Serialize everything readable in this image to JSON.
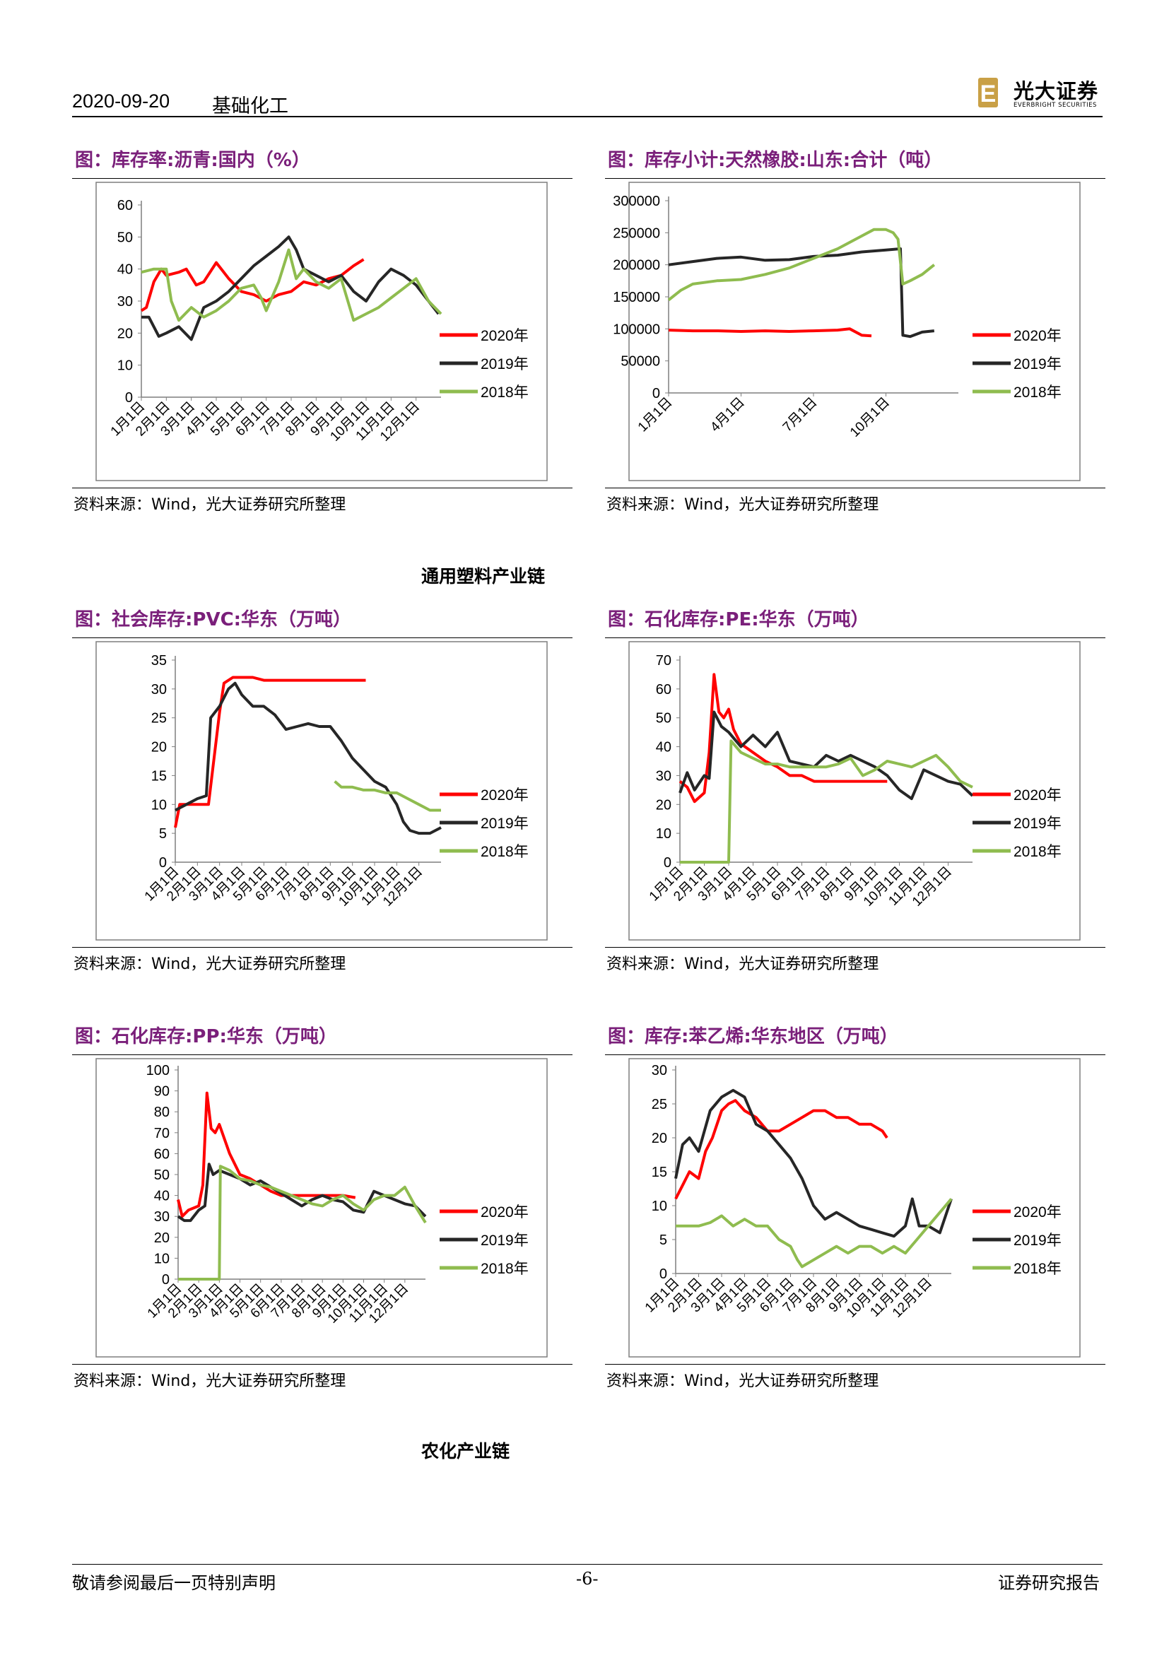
{
  "header": {
    "date": "2020-09-20",
    "sector": "基础化工",
    "logo_cn": "光大证券",
    "logo_en": "EVERBRIGHT SECURITIES",
    "logo_mark": "E"
  },
  "sections": {
    "plastics": "通用塑料产业链",
    "agro": "农化产业链"
  },
  "footer": {
    "left": "敬请参阅最后一页特别声明",
    "page": "-6-",
    "right": "证券研究报告"
  },
  "colors": {
    "2020": "#ff0000",
    "2019": "#262626",
    "2018": "#8fbc4f",
    "title": "#7a1f7a"
  },
  "charts": [
    {
      "id": "asphalt",
      "title": "图：库存率:沥青:国内（%）",
      "source": "资料来源：Wind，光大证券研究所整理"
    },
    {
      "id": "rubber",
      "title": "图：库存小计:天然橡胶:山东:合计（吨）",
      "source": "资料来源：Wind，光大证券研究所整理"
    },
    {
      "id": "pvc",
      "title": "图：社会库存:PVC:华东（万吨）",
      "source": "资料来源：Wind，光大证券研究所整理"
    },
    {
      "id": "pe",
      "title": "图：石化库存:PE:华东（万吨）",
      "source": "资料来源：Wind，光大证券研究所整理"
    },
    {
      "id": "pp",
      "title": "图：石化库存:PP:华东（万吨）",
      "source": "资料来源：Wind，光大证券研究所整理"
    },
    {
      "id": "styrene",
      "title": "图：库存:苯乙烯:华东地区（万吨）",
      "source": "资料来源：Wind，光大证券研究所整理"
    }
  ],
  "chart_data": [
    {
      "id": "asphalt",
      "type": "line",
      "ylim": [
        0,
        60
      ],
      "yticks": [
        0,
        10,
        20,
        30,
        40,
        50,
        60
      ],
      "categories": [
        "1月1日",
        "2月1日",
        "3月1日",
        "4月1日",
        "5月1日",
        "6月1日",
        "7月1日",
        "8月1日",
        "9月1日",
        "10月1日",
        "11月1日",
        "12月1日"
      ],
      "legend": [
        "2020年",
        "2019年",
        "2018年"
      ],
      "legend_position": "right",
      "grid": false,
      "series": [
        {
          "name": "2020年",
          "x": [
            0,
            0.2,
            0.5,
            0.8,
            1.0,
            1.5,
            1.8,
            2.2,
            2.5,
            3.0,
            3.5,
            4.0,
            4.5,
            5.0,
            5.5,
            6.0,
            6.5,
            7.0,
            7.5,
            8.0,
            8.5,
            8.9
          ],
          "values": [
            27,
            28,
            36,
            40,
            38,
            39,
            40,
            35,
            36,
            42,
            37,
            33,
            32,
            30,
            32,
            33,
            36,
            35,
            37,
            38,
            41,
            43
          ]
        },
        {
          "name": "2019年",
          "x": [
            0,
            0.3,
            0.7,
            1.0,
            1.5,
            2.0,
            2.5,
            3.0,
            3.5,
            4.0,
            4.5,
            5.0,
            5.5,
            5.9,
            6.2,
            6.5,
            7.0,
            7.5,
            8.0,
            8.5,
            9.0,
            9.5,
            10.0,
            10.5,
            11.0,
            11.5,
            11.9
          ],
          "values": [
            25,
            25,
            19,
            20,
            22,
            18,
            28,
            30,
            33,
            37,
            41,
            44,
            47,
            50,
            46,
            40,
            38,
            36,
            38,
            33,
            30,
            36,
            40,
            38,
            35,
            30,
            26
          ]
        },
        {
          "name": "2018年",
          "x": [
            0,
            0.5,
            1.0,
            1.2,
            1.5,
            2.0,
            2.5,
            3.0,
            3.5,
            4.0,
            4.5,
            4.8,
            5.0,
            5.5,
            5.9,
            6.2,
            6.5,
            7.0,
            7.5,
            8.0,
            8.5,
            9.0,
            9.5,
            10.0,
            10.5,
            11.0,
            11.5,
            12.0
          ],
          "values": [
            39,
            40,
            40,
            30,
            24,
            28,
            25,
            27,
            30,
            34,
            35,
            31,
            27,
            36,
            46,
            37,
            40,
            36,
            34,
            37,
            24,
            26,
            28,
            31,
            34,
            37,
            30,
            26
          ]
        }
      ]
    },
    {
      "id": "rubber",
      "type": "line",
      "ylim": [
        0,
        300000
      ],
      "yticks": [
        0,
        50000,
        100000,
        150000,
        200000,
        250000,
        300000
      ],
      "categories": [
        "1月1日",
        "4月1日",
        "7月1日",
        "10月1日"
      ],
      "legend": [
        "2020年",
        "2019年",
        "2018年"
      ],
      "legend_position": "right",
      "grid": false,
      "series": [
        {
          "name": "2020年",
          "x": [
            0,
            1,
            2,
            3,
            4,
            5,
            6,
            7,
            7.5,
            8,
            8.4
          ],
          "values": [
            98000,
            97000,
            97000,
            96000,
            97000,
            96000,
            97000,
            98000,
            100000,
            90000,
            89000
          ]
        },
        {
          "name": "2019年",
          "x": [
            0,
            1,
            2,
            3,
            4,
            5,
            6,
            7,
            8,
            9,
            9.6,
            9.7,
            10,
            10.5,
            11
          ],
          "values": [
            200000,
            205000,
            210000,
            212000,
            207000,
            208000,
            213000,
            215000,
            220000,
            223000,
            225000,
            90000,
            88000,
            95000,
            97000
          ]
        },
        {
          "name": "2018年",
          "x": [
            0,
            0.5,
            1,
            2,
            3,
            4,
            5,
            6,
            7,
            8,
            8.5,
            9,
            9.3,
            9.5,
            9.7,
            10,
            10.5,
            11
          ],
          "values": [
            145000,
            160000,
            170000,
            175000,
            177000,
            185000,
            195000,
            210000,
            225000,
            245000,
            255000,
            255000,
            250000,
            240000,
            170000,
            175000,
            185000,
            200000
          ]
        }
      ]
    },
    {
      "id": "pvc",
      "type": "line",
      "ylim": [
        0,
        35
      ],
      "yticks": [
        0,
        5,
        10,
        15,
        20,
        25,
        30,
        35
      ],
      "categories": [
        "1月1日",
        "2月1日",
        "3月1日",
        "4月1日",
        "5月1日",
        "6月1日",
        "7月1日",
        "8月1日",
        "9月1日",
        "10月1日",
        "11月1日",
        "12月1日"
      ],
      "legend": [
        "2020年",
        "2019年",
        "2018年"
      ],
      "legend_position": "right",
      "grid": false,
      "series": [
        {
          "name": "2020年",
          "x": [
            0,
            0.2,
            0.5,
            1.0,
            1.5,
            2.0,
            2.2,
            2.6,
            3.0,
            3.5,
            4.0,
            5.0,
            6.0,
            7.0,
            8.0,
            8.6
          ],
          "values": [
            6,
            10,
            10,
            10,
            10,
            26,
            31,
            32,
            32,
            32,
            31.5,
            31.5,
            31.5,
            31.5,
            31.5,
            31.5
          ]
        },
        {
          "name": "2019年",
          "x": [
            0,
            0.5,
            1.0,
            1.4,
            1.6,
            2.0,
            2.4,
            2.7,
            3.0,
            3.5,
            4.0,
            4.5,
            5.0,
            5.5,
            6.0,
            6.5,
            7.0,
            7.5,
            8.0,
            8.5,
            9.0,
            9.5,
            10.0,
            10.3,
            10.6,
            11.0,
            11.5,
            12.0
          ],
          "values": [
            9,
            10,
            11,
            11.5,
            25,
            27,
            30,
            31,
            29,
            27,
            27,
            25.5,
            23,
            23.5,
            24,
            23.5,
            23.5,
            21,
            18,
            16,
            14,
            13,
            10,
            7,
            5.5,
            5,
            5,
            6
          ]
        },
        {
          "name": "2018年",
          "x": [
            7.2,
            7.5,
            8.0,
            8.5,
            9.0,
            9.5,
            10.0,
            10.5,
            11.0,
            11.5,
            12.0
          ],
          "values": [
            14,
            13,
            13,
            12.5,
            12.5,
            12,
            12,
            11,
            10,
            9,
            9
          ]
        }
      ]
    },
    {
      "id": "pe",
      "type": "line",
      "ylim": [
        0,
        70
      ],
      "yticks": [
        0,
        10,
        20,
        30,
        40,
        50,
        60,
        70
      ],
      "categories": [
        "1月1日",
        "2月1日",
        "3月1日",
        "4月1日",
        "5月1日",
        "6月1日",
        "7月1日",
        "8月1日",
        "9月1日",
        "10月1日",
        "11月1日",
        "12月1日"
      ],
      "legend": [
        "2020年",
        "2019年",
        "2018年"
      ],
      "legend_position": "right",
      "grid": false,
      "series": [
        {
          "name": "2020年",
          "x": [
            0,
            0.3,
            0.6,
            1.0,
            1.2,
            1.4,
            1.6,
            1.8,
            2.0,
            2.2,
            2.5,
            3.0,
            3.5,
            4.0,
            4.5,
            5.0,
            5.5,
            6.0,
            7.0,
            8.0,
            8.5
          ],
          "values": [
            28,
            26,
            21,
            24,
            38,
            65,
            52,
            50,
            53,
            46,
            41,
            38,
            35,
            33,
            30,
            30,
            28,
            28,
            28,
            28,
            28
          ]
        },
        {
          "name": "2019年",
          "x": [
            0,
            0.3,
            0.6,
            1.0,
            1.2,
            1.4,
            1.7,
            2.0,
            2.5,
            3.0,
            3.5,
            4.0,
            4.5,
            5.0,
            5.5,
            6.0,
            6.5,
            7.0,
            7.5,
            8.0,
            8.5,
            9.0,
            9.5,
            10.0,
            10.5,
            11.0,
            11.5,
            12.0
          ],
          "values": [
            24,
            31,
            25,
            30,
            29,
            52,
            47,
            45,
            40,
            44,
            40,
            45,
            35,
            34,
            33,
            37,
            35,
            37,
            35,
            33,
            30,
            25,
            22,
            32,
            30,
            28,
            27,
            23
          ]
        },
        {
          "name": "2018年",
          "x": [
            0,
            1.0,
            2.0,
            2.1,
            2.5,
            3.0,
            3.5,
            4.0,
            4.5,
            5.0,
            5.5,
            6.0,
            6.5,
            7.0,
            7.5,
            8.0,
            8.5,
            9.0,
            9.5,
            10.0,
            10.5,
            11.0,
            11.5,
            12.0
          ],
          "values": [
            0,
            0,
            0,
            42,
            38,
            36,
            34,
            34,
            33,
            33,
            33,
            33,
            34,
            36,
            30,
            32,
            35,
            34,
            33,
            35,
            37,
            33,
            28,
            26
          ]
        }
      ]
    },
    {
      "id": "pp",
      "type": "line",
      "ylim": [
        0,
        100
      ],
      "yticks": [
        0,
        10,
        20,
        30,
        40,
        50,
        60,
        70,
        80,
        90,
        100
      ],
      "categories": [
        "1月1日",
        "2月1日",
        "3月1日",
        "4月1日",
        "5月1日",
        "6月1日",
        "7月1日",
        "8月1日",
        "9月1日",
        "10月1日",
        "11月1日",
        "12月1日"
      ],
      "legend": [
        "2020年",
        "2019年",
        "2018年"
      ],
      "legend_position": "right",
      "grid": false,
      "series": [
        {
          "name": "2020年",
          "x": [
            0,
            0.2,
            0.5,
            1.0,
            1.2,
            1.4,
            1.6,
            1.8,
            2.0,
            2.5,
            3.0,
            3.5,
            4.0,
            4.5,
            5.0,
            6.0,
            7.0,
            8.0,
            8.6
          ],
          "values": [
            38,
            30,
            33,
            35,
            45,
            89,
            72,
            70,
            74,
            60,
            50,
            48,
            45,
            42,
            40,
            40,
            40,
            40,
            39
          ]
        },
        {
          "name": "2019年",
          "x": [
            0,
            0.3,
            0.6,
            1.0,
            1.3,
            1.5,
            1.7,
            2.0,
            2.5,
            3.0,
            3.5,
            4.0,
            4.5,
            5.0,
            5.5,
            6.0,
            6.5,
            7.0,
            7.5,
            8.0,
            8.5,
            9.0,
            9.5,
            10.0,
            10.5,
            11.0,
            11.5,
            12.0
          ],
          "values": [
            30,
            28,
            28,
            33,
            35,
            55,
            50,
            52,
            50,
            48,
            45,
            47,
            44,
            41,
            38,
            35,
            38,
            40,
            38,
            37,
            33,
            32,
            42,
            40,
            38,
            36,
            35,
            30
          ]
        },
        {
          "name": "2018年",
          "x": [
            0,
            1.0,
            2.0,
            2.05,
            2.5,
            3.0,
            3.5,
            4.0,
            4.5,
            5.0,
            5.5,
            6.0,
            6.5,
            7.0,
            7.5,
            8.0,
            8.5,
            9.0,
            9.5,
            10.0,
            10.5,
            11.0,
            11.5,
            12.0
          ],
          "values": [
            0,
            0,
            0,
            54,
            52,
            48,
            47,
            45,
            44,
            42,
            40,
            38,
            36,
            35,
            38,
            40,
            36,
            33,
            38,
            40,
            40,
            44,
            35,
            27
          ]
        }
      ]
    },
    {
      "id": "styrene",
      "type": "line",
      "ylim": [
        0,
        30
      ],
      "yticks": [
        0,
        5,
        10,
        15,
        20,
        25,
        30
      ],
      "categories": [
        "1月1日",
        "2月1日",
        "3月1日",
        "4月1日",
        "5月1日",
        "6月1日",
        "7月1日",
        "8月1日",
        "9月1日",
        "10月1日",
        "11月1日",
        "12月1日"
      ],
      "legend": [
        "2020年",
        "2019年",
        "2018年"
      ],
      "legend_position": "right",
      "grid": false,
      "series": [
        {
          "name": "2020年",
          "x": [
            0,
            0.3,
            0.6,
            1.0,
            1.3,
            1.6,
            2.0,
            2.3,
            2.6,
            3.0,
            3.5,
            4.0,
            4.5,
            5.0,
            5.5,
            6.0,
            6.5,
            7.0,
            7.5,
            8.0,
            8.5,
            9.0,
            9.2
          ],
          "values": [
            11,
            13,
            15,
            14,
            18,
            20,
            24,
            25,
            25.5,
            24,
            23,
            21,
            21,
            22,
            23,
            24,
            24,
            23,
            23,
            22,
            22,
            21,
            20
          ]
        },
        {
          "name": "2019年",
          "x": [
            0,
            0.3,
            0.6,
            1.0,
            1.5,
            2.0,
            2.5,
            3.0,
            3.5,
            4.0,
            4.5,
            5.0,
            5.5,
            6.0,
            6.5,
            7.0,
            7.5,
            8.0,
            8.5,
            9.0,
            9.5,
            10.0,
            10.3,
            10.6,
            11.0,
            11.5,
            12.0
          ],
          "values": [
            14,
            19,
            20,
            18,
            24,
            26,
            27,
            26,
            22,
            21,
            19,
            17,
            14,
            10,
            8,
            9,
            8,
            7,
            6.5,
            6,
            5.5,
            7,
            11,
            7,
            7,
            6,
            11
          ]
        },
        {
          "name": "2018年",
          "x": [
            0,
            0.5,
            1.0,
            1.5,
            2.0,
            2.5,
            3.0,
            3.5,
            4.0,
            4.5,
            5.0,
            5.3,
            5.5,
            6.0,
            6.5,
            7.0,
            7.5,
            8.0,
            8.5,
            9.0,
            9.5,
            10.0,
            10.5,
            11.0,
            11.5,
            12.0
          ],
          "values": [
            7,
            7,
            7,
            7.5,
            8.5,
            7,
            8,
            7,
            7,
            5,
            4,
            2,
            1,
            2,
            3,
            4,
            3,
            4,
            4,
            3,
            4,
            3,
            5,
            7,
            9,
            11
          ]
        }
      ]
    }
  ]
}
